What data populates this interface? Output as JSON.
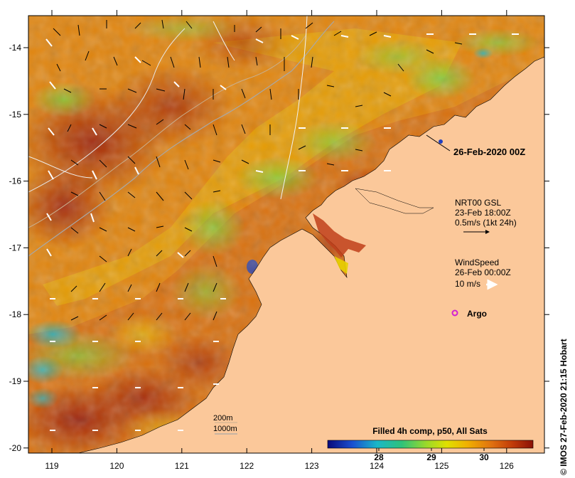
{
  "map": {
    "lon_ticks": [
      "119",
      "120",
      "121",
      "122",
      "123",
      "124",
      "125",
      "126"
    ],
    "lat_ticks": [
      "-14",
      "-15",
      "-16",
      "-17",
      "-18",
      "-19",
      "-20"
    ],
    "date_label": "26-Feb-2020 00Z",
    "current_legend": {
      "line1": "NRT00 GSL",
      "line2": "23-Feb 18:00Z",
      "line3": "0.5m/s (1kt 24h)"
    },
    "wind_legend": {
      "line1": "WindSpeed",
      "line2": "26-Feb 00:00Z",
      "line3": "10 m/s"
    },
    "argo_label": "Argo",
    "depth_legend": {
      "line1": "200m",
      "line2": "1000m"
    },
    "colorbar": {
      "title": "Filled 4h comp, p50, All Sats",
      "tick_labels": [
        "28",
        "29",
        "30"
      ]
    },
    "credit": "© IMOS 27-Feb-2020 21:15 Hobart",
    "colors": {
      "land": "#fbc89a",
      "sst_hot": "#9a1a08",
      "sst_warm": "#d96a10",
      "sst_mid": "#e8b300",
      "sst_cool": "#7fd13a",
      "sst_cold": "#1ab7c8",
      "argo": "#d21fd2"
    }
  }
}
